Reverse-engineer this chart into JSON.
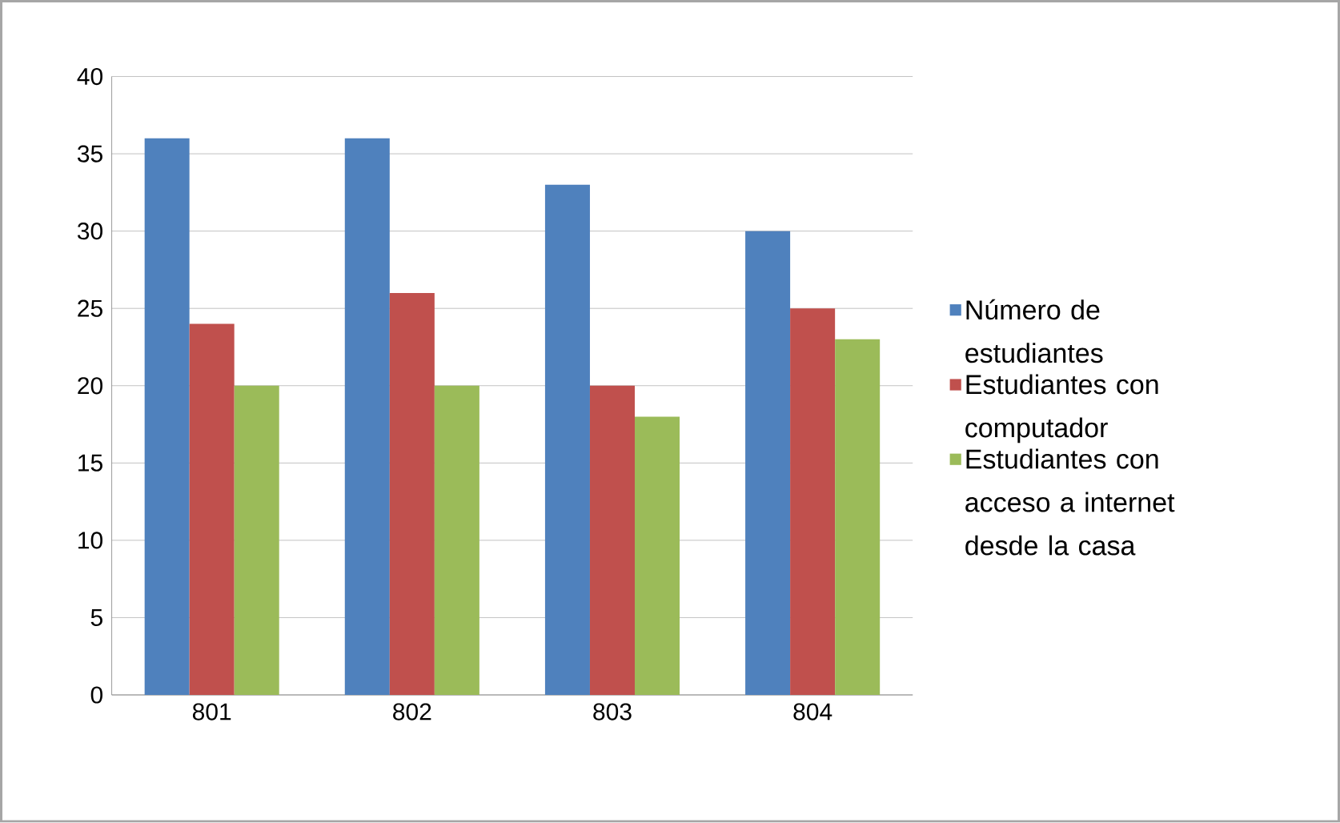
{
  "chart_data": {
    "type": "bar",
    "categories": [
      "801",
      "802",
      "803",
      "804"
    ],
    "series": [
      {
        "name": "Número de estudiantes",
        "color": "#4f81bd",
        "values": [
          36,
          36,
          33,
          30
        ]
      },
      {
        "name": "Estudiantes con computador",
        "color": "#c0504d",
        "values": [
          24,
          26,
          20,
          25
        ]
      },
      {
        "name": "Estudiantes con acceso a internet desde la casa",
        "color": "#9bbb59",
        "values": [
          20,
          20,
          18,
          23
        ]
      }
    ],
    "ylim": [
      0,
      40
    ],
    "yticks": [
      0,
      5,
      10,
      15,
      20,
      25,
      30,
      35,
      40
    ],
    "grid": "y",
    "legend": "right"
  }
}
